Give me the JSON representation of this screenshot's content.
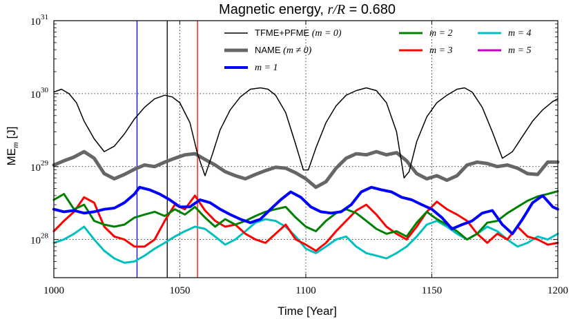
{
  "chart_data": {
    "type": "line",
    "title_prefix": "Magnetic energy, ",
    "title_math": "r/R",
    "title_suffix": " = 0.680",
    "xlabel": "Time [Year]",
    "ylabel_main": "ME",
    "ylabel_sub": "m",
    "ylabel_unit": " [J]",
    "xlim": [
      1000,
      1200
    ],
    "ylim": [
      3e+27,
      1e+31
    ],
    "yscale": "log",
    "grid": "dotted",
    "x_ticks": [
      1000,
      1050,
      1100,
      1150,
      1200
    ],
    "x_tick_labels": [
      "1000",
      "1050",
      "1100",
      "1150",
      "1200"
    ],
    "y_ticks": [
      {
        "base": "10",
        "exp": "28",
        "value": 1e+28
      },
      {
        "base": "10",
        "exp": "29",
        "value": 1e+29
      },
      {
        "base": "10",
        "exp": "30",
        "value": 1e+30
      },
      {
        "base": "10",
        "exp": "31",
        "value": 1e+31
      }
    ],
    "vlines": [
      {
        "x": 1033,
        "color": "#0000ff"
      },
      {
        "x": 1045,
        "color": "#000000"
      },
      {
        "x": 1057,
        "color": "#ff0000"
      }
    ],
    "legend_placement": "top",
    "series": [
      {
        "name": "TFME+PFME ",
        "name_math": "(m = 0)",
        "color": "#000000",
        "width": 1.5,
        "x": [
          1000,
          1003,
          1006,
          1009,
          1012,
          1016,
          1020,
          1024,
          1028,
          1032,
          1036,
          1040,
          1044,
          1047,
          1050,
          1054,
          1057,
          1060,
          1063,
          1066,
          1070,
          1074,
          1078,
          1082,
          1085,
          1088,
          1092,
          1096,
          1099,
          1101,
          1104,
          1108,
          1112,
          1116,
          1120,
          1124,
          1128,
          1132,
          1136,
          1139,
          1141,
          1144,
          1148,
          1152,
          1156,
          1160,
          1163,
          1166,
          1170,
          1174,
          1178,
          1182,
          1186,
          1190,
          1194,
          1198,
          1200
        ],
        "y": [
          1.05e+30,
          1.15e+30,
          1e+30,
          7.5e+29,
          4.2e+29,
          2.4e+29,
          1.6e+29,
          1.9e+29,
          2.8e+29,
          4.5e+29,
          6.5e+29,
          8.5e+29,
          9.5e+29,
          9e+29,
          7.5e+29,
          4e+29,
          1.5e+29,
          7.5e+28,
          1.5e+29,
          3.2e+29,
          6e+29,
          9e+29,
          1.15e+30,
          1.2e+30,
          1.15e+30,
          9.5e+29,
          5.5e+29,
          2e+29,
          9e+28,
          9e+28,
          1.8e+29,
          4e+29,
          6.8e+29,
          9.5e+29,
          1.1e+30,
          1.2e+30,
          1.1e+30,
          7.5e+29,
          3e+29,
          7e+28,
          8.5e+28,
          2.2e+29,
          4.8e+29,
          7.5e+29,
          9.5e+29,
          1.15e+30,
          1.2e+30,
          1.05e+30,
          6.5e+29,
          3e+29,
          1.3e+29,
          1.6e+29,
          2.6e+29,
          4.2e+29,
          6e+29,
          7.8e+29,
          8.5e+29
        ]
      },
      {
        "name": "NAME ",
        "name_math": "(m ≠ 0)",
        "color": "#666666",
        "width": 5,
        "x": [
          1000,
          1004,
          1008,
          1012,
          1016,
          1020,
          1024,
          1028,
          1032,
          1036,
          1040,
          1044,
          1048,
          1052,
          1056,
          1060,
          1064,
          1068,
          1072,
          1076,
          1080,
          1084,
          1088,
          1092,
          1096,
          1100,
          1104,
          1108,
          1112,
          1116,
          1120,
          1124,
          1128,
          1132,
          1136,
          1140,
          1144,
          1148,
          1152,
          1156,
          1160,
          1164,
          1168,
          1172,
          1176,
          1180,
          1184,
          1188,
          1192,
          1196,
          1200
        ],
        "y": [
          1.05e+29,
          1.2e+29,
          1.35e+29,
          1.6e+29,
          1.3e+29,
          8e+28,
          6.8e+28,
          7.8e+28,
          9.2e+28,
          1.05e+29,
          1e+29,
          1.15e+29,
          1.3e+29,
          1.45e+29,
          1.5e+29,
          1.25e+29,
          1.05e+29,
          8.5e+28,
          7.5e+28,
          6.8e+28,
          7.8e+28,
          8.8e+28,
          9.8e+28,
          9.5e+28,
          8.2e+28,
          6.8e+28,
          5.2e+28,
          6.2e+28,
          9.5e+28,
          1.3e+29,
          1.5e+29,
          1.45e+29,
          1.6e+29,
          1.45e+29,
          1.55e+29,
          1.2e+29,
          8e+28,
          6.8e+28,
          7.5e+28,
          6.5e+28,
          7.5e+28,
          1.05e+29,
          1.15e+29,
          1.1e+29,
          1e+29,
          1.05e+29,
          9.5e+28,
          8e+28,
          7.8e+28,
          1.15e+29,
          1.15e+29
        ]
      },
      {
        "name": "",
        "name_math": "m = 1",
        "color": "#0000ff",
        "width": 4,
        "x": [
          1000,
          1004,
          1008,
          1012,
          1016,
          1020,
          1024,
          1028,
          1032,
          1034,
          1038,
          1042,
          1046,
          1050,
          1054,
          1058,
          1062,
          1066,
          1070,
          1074,
          1078,
          1082,
          1086,
          1090,
          1094,
          1098,
          1102,
          1106,
          1110,
          1114,
          1118,
          1122,
          1126,
          1130,
          1134,
          1138,
          1142,
          1146,
          1150,
          1154,
          1158,
          1162,
          1166,
          1170,
          1174,
          1178,
          1182,
          1186,
          1190,
          1194,
          1198,
          1200
        ],
        "y": [
          2.6e+28,
          2.4e+28,
          2.5e+28,
          2.3e+28,
          2.4e+28,
          2.6e+28,
          2.7e+28,
          3.2e+28,
          4.2e+28,
          5.2e+28,
          4.8e+28,
          4.2e+28,
          3.5e+28,
          2.8e+28,
          2.8e+28,
          3.5e+28,
          3.2e+28,
          2.6e+28,
          2.2e+28,
          1.9e+28,
          1.7e+28,
          1.9e+28,
          2.6e+28,
          3.5e+28,
          4.5e+28,
          3.8e+28,
          2.8e+28,
          2.4e+28,
          2.3e+28,
          2.4e+28,
          3e+28,
          4.5e+28,
          5.2e+28,
          4.8e+28,
          4.5e+28,
          3.8e+28,
          3.5e+28,
          3e+28,
          2.6e+28,
          2e+28,
          1.4e+28,
          1.6e+28,
          1.8e+28,
          2.3e+28,
          2.5e+28,
          1.6e+28,
          1.2e+28,
          1.9e+28,
          3.2e+28,
          4e+28,
          2.8e+28,
          2.6e+28
        ]
      },
      {
        "name": "",
        "name_math": "m = 2",
        "color": "#008000",
        "width": 3,
        "x": [
          1000,
          1004,
          1008,
          1012,
          1016,
          1020,
          1024,
          1028,
          1032,
          1036,
          1040,
          1044,
          1048,
          1052,
          1056,
          1060,
          1064,
          1068,
          1072,
          1076,
          1080,
          1084,
          1088,
          1092,
          1096,
          1100,
          1104,
          1108,
          1112,
          1116,
          1120,
          1124,
          1128,
          1132,
          1136,
          1140,
          1144,
          1148,
          1152,
          1156,
          1160,
          1164,
          1168,
          1172,
          1176,
          1180,
          1184,
          1188,
          1192,
          1196,
          1200
        ],
        "y": [
          3.5e+28,
          4.2e+28,
          2.6e+28,
          3e+28,
          1.8e+28,
          1.6e+28,
          1.5e+28,
          1.6e+28,
          2e+28,
          2.2e+28,
          2.4e+28,
          2.1e+28,
          2.6e+28,
          2.2e+28,
          2.8e+28,
          2e+28,
          1.5e+28,
          1.9e+28,
          1.6e+28,
          1.8e+28,
          2.1e+28,
          2.4e+28,
          2.6e+28,
          2.8e+28,
          2e+28,
          1.5e+28,
          1.3e+28,
          1.8e+28,
          2.3e+28,
          2.6e+28,
          2.3e+28,
          1.8e+28,
          1.4e+28,
          1.2e+28,
          1.3e+28,
          1.1e+28,
          1.7e+28,
          2.4e+28,
          1.9e+28,
          1.6e+28,
          1.3e+28,
          1e+28,
          1.2e+28,
          1.7e+28,
          1.8e+28,
          2.3e+28,
          2.8e+28,
          3.4e+28,
          3.9e+28,
          4.2e+28,
          4.6e+28
        ]
      },
      {
        "name": "",
        "name_math": "m = 3",
        "color": "#ff0000",
        "width": 3,
        "x": [
          1000,
          1004,
          1008,
          1012,
          1016,
          1020,
          1024,
          1028,
          1032,
          1036,
          1040,
          1044,
          1048,
          1052,
          1056,
          1060,
          1064,
          1068,
          1072,
          1076,
          1080,
          1084,
          1088,
          1092,
          1096,
          1100,
          1104,
          1108,
          1112,
          1116,
          1120,
          1124,
          1128,
          1132,
          1136,
          1140,
          1144,
          1148,
          1152,
          1156,
          1160,
          1164,
          1168,
          1172,
          1176,
          1180,
          1184,
          1188,
          1192,
          1196,
          1200
        ],
        "y": [
          1.3e+28,
          1.8e+28,
          2.4e+28,
          3.8e+28,
          3.2e+28,
          1.5e+28,
          1.1e+28,
          1e+28,
          8e+27,
          8e+27,
          1e+28,
          1.8e+28,
          3e+28,
          2.6e+28,
          4e+28,
          2.5e+28,
          1.8e+28,
          1.5e+28,
          1.6e+28,
          1.2e+28,
          1e+28,
          9e+27,
          1.2e+28,
          1.6e+28,
          1e+28,
          8.5e+27,
          7e+27,
          9e+27,
          1.3e+28,
          1.8e+28,
          2.5e+28,
          3e+28,
          2.2e+28,
          1.5e+28,
          1.2e+28,
          1e+28,
          1.5e+28,
          2.4e+28,
          3.3e+28,
          2.6e+28,
          2.2e+28,
          1.8e+28,
          1.2e+28,
          9e+27,
          1.2e+28,
          1e+28,
          1.5e+28,
          1.1e+28,
          1e+28,
          8.5e+27,
          9e+27
        ]
      },
      {
        "name": "",
        "name_math": "m = 4",
        "color": "#00bfbf",
        "width": 3,
        "x": [
          1000,
          1004,
          1008,
          1012,
          1016,
          1020,
          1024,
          1028,
          1032,
          1036,
          1040,
          1044,
          1048,
          1052,
          1056,
          1060,
          1064,
          1068,
          1072,
          1076,
          1080,
          1084,
          1088,
          1092,
          1096,
          1100,
          1104,
          1108,
          1112,
          1116,
          1120,
          1124,
          1128,
          1132,
          1136,
          1140,
          1144,
          1148,
          1152,
          1156,
          1160,
          1164,
          1168,
          1172,
          1176,
          1180,
          1184,
          1188,
          1192,
          1196,
          1200
        ],
        "y": [
          9e+27,
          1e+28,
          1.2e+28,
          1.5e+28,
          1e+28,
          7e+27,
          5.5e+27,
          4.8e+27,
          5e+27,
          6e+27,
          7.5e+27,
          9e+27,
          1.1e+28,
          1.3e+28,
          1.5e+28,
          1.4e+28,
          1.1e+28,
          8.5e+27,
          1e+28,
          1.3e+28,
          1.7e+28,
          1.9e+28,
          1.8e+28,
          1.5e+28,
          1.1e+28,
          7.5e+27,
          6.5e+27,
          8e+27,
          1e+28,
          1.1e+28,
          8e+27,
          6.5e+27,
          6e+27,
          5.5e+27,
          6.5e+27,
          8e+27,
          1.1e+28,
          1.6e+28,
          1.8e+28,
          1.5e+28,
          1.2e+28,
          1e+28,
          1.2e+28,
          1.5e+28,
          1.3e+28,
          1e+28,
          8e+27,
          9e+27,
          1.1e+28,
          1e+28,
          1.2e+28
        ]
      },
      {
        "name": "",
        "name_math": "m = 5",
        "color": "#bf00bf",
        "width": 3,
        "x": [
          1000,
          1004,
          1008,
          1012,
          1016,
          1020,
          1024,
          1028,
          1032,
          1036,
          1040,
          1044,
          1048,
          1052,
          1056,
          1060,
          1064,
          1068,
          1072,
          1076,
          1080,
          1084,
          1088,
          1092,
          1096,
          1100,
          1104,
          1108,
          1112,
          1116,
          1120,
          1124,
          1128,
          1132,
          1136,
          1140,
          1144,
          1148,
          1152,
          1156,
          1160,
          1164,
          1168,
          1172,
          1176,
          1180,
          1184,
          1188,
          1192,
          1196,
          1200
        ],
        "y": [
          5e+27,
          6e+27,
          7.5e+27,
          9e+27,
          7e+27,
          5.5e+27,
          4.5e+27,
          4.2e+27,
          4.5e+27,
          5e+27,
          6e+27,
          7e+27,
          8e+27,
          8.5e+27,
          9e+27,
          8e+27,
          7e+27,
          6e+27,
          5.5e+27,
          6e+27,
          7e+27,
          7.5e+27,
          6.8e+27,
          6e+27,
          5e+27,
          4.2e+27,
          3.8e+27,
          4.2e+27,
          5e+27,
          6e+27,
          6.5e+27,
          5.5e+27,
          5e+27,
          4.8e+27,
          5.5e+27,
          6e+27,
          7e+27,
          8e+27,
          9e+27,
          8.5e+27,
          7e+27,
          5.5e+27,
          5e+27,
          4.5e+27,
          4e+27,
          3.8e+27,
          4.5e+27,
          5e+27,
          5.5e+27,
          5e+27,
          5e+27
        ]
      }
    ]
  }
}
